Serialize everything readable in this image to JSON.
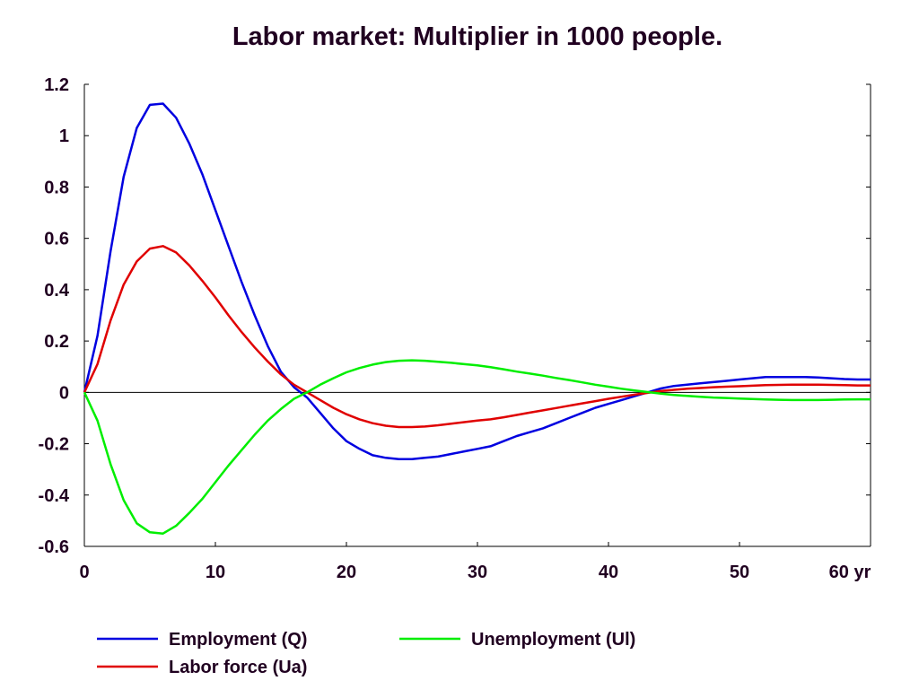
{
  "chart_data": {
    "type": "line",
    "title": "Labor market: Multiplier in 1000 people.",
    "xlabel": "",
    "ylabel": "",
    "x_unit_suffix": "yr",
    "xlim": [
      0,
      60
    ],
    "ylim": [
      -0.6,
      1.2
    ],
    "x_ticks": [
      0,
      10,
      20,
      30,
      40,
      50,
      60
    ],
    "x_tick_labels": [
      "0",
      "10",
      "20",
      "30",
      "40",
      "50",
      "60 yr"
    ],
    "y_ticks": [
      -0.6,
      -0.4,
      -0.2,
      0,
      0.2,
      0.4,
      0.6,
      0.8,
      1,
      1.2
    ],
    "y_tick_labels": [
      "-0.6",
      "-0.4",
      "-0.2",
      "0",
      "0.2",
      "0.4",
      "0.6",
      "0.8",
      "1",
      "1.2"
    ],
    "grid": false,
    "zero_line": true,
    "legend_position": "bottom",
    "x": [
      0,
      1,
      2,
      3,
      4,
      5,
      6,
      7,
      8,
      9,
      10,
      11,
      12,
      13,
      14,
      15,
      16,
      17,
      18,
      19,
      20,
      21,
      22,
      23,
      24,
      25,
      26,
      27,
      28,
      29,
      30,
      31,
      32,
      33,
      34,
      35,
      36,
      37,
      38,
      39,
      40,
      41,
      42,
      43,
      44,
      45,
      46,
      47,
      48,
      49,
      50,
      51,
      52,
      53,
      54,
      55,
      56,
      57,
      58,
      59,
      60
    ],
    "series": [
      {
        "name": "Employment (Q)",
        "color": "#0000e0",
        "values": [
          0,
          0.22,
          0.55,
          0.84,
          1.03,
          1.12,
          1.125,
          1.07,
          0.97,
          0.85,
          0.71,
          0.57,
          0.43,
          0.3,
          0.18,
          0.08,
          0.02,
          -0.02,
          -0.08,
          -0.14,
          -0.19,
          -0.22,
          -0.245,
          -0.255,
          -0.26,
          -0.26,
          -0.255,
          -0.25,
          -0.24,
          -0.23,
          -0.22,
          -0.21,
          -0.19,
          -0.17,
          -0.155,
          -0.14,
          -0.12,
          -0.1,
          -0.08,
          -0.06,
          -0.045,
          -0.03,
          -0.015,
          0,
          0.015,
          0.025,
          0.03,
          0.035,
          0.04,
          0.045,
          0.05,
          0.055,
          0.06,
          0.06,
          0.06,
          0.06,
          0.058,
          0.055,
          0.052,
          0.05,
          0.05
        ]
      },
      {
        "name": "Labor force (Ua)",
        "color": "#e00000",
        "values": [
          0,
          0.11,
          0.28,
          0.42,
          0.51,
          0.56,
          0.57,
          0.545,
          0.495,
          0.435,
          0.37,
          0.3,
          0.235,
          0.175,
          0.12,
          0.07,
          0.03,
          0,
          -0.03,
          -0.06,
          -0.085,
          -0.105,
          -0.12,
          -0.13,
          -0.135,
          -0.135,
          -0.133,
          -0.128,
          -0.122,
          -0.116,
          -0.11,
          -0.105,
          -0.097,
          -0.088,
          -0.079,
          -0.07,
          -0.061,
          -0.052,
          -0.043,
          -0.034,
          -0.025,
          -0.017,
          -0.009,
          -0.002,
          0.005,
          0.01,
          0.014,
          0.017,
          0.02,
          0.022,
          0.024,
          0.026,
          0.028,
          0.029,
          0.03,
          0.03,
          0.03,
          0.029,
          0.028,
          0.027,
          0.027
        ]
      },
      {
        "name": "Unemployment (Ul)",
        "color": "#00ee00",
        "values": [
          0,
          -0.11,
          -0.28,
          -0.42,
          -0.51,
          -0.545,
          -0.55,
          -0.52,
          -0.47,
          -0.415,
          -0.35,
          -0.285,
          -0.225,
          -0.165,
          -0.11,
          -0.065,
          -0.025,
          0,
          0.03,
          0.055,
          0.078,
          0.095,
          0.108,
          0.118,
          0.123,
          0.125,
          0.123,
          0.119,
          0.115,
          0.11,
          0.105,
          0.098,
          0.09,
          0.081,
          0.073,
          0.065,
          0.056,
          0.048,
          0.039,
          0.03,
          0.022,
          0.014,
          0.007,
          0.001,
          -0.005,
          -0.01,
          -0.014,
          -0.017,
          -0.02,
          -0.022,
          -0.024,
          -0.026,
          -0.028,
          -0.029,
          -0.03,
          -0.03,
          -0.03,
          -0.029,
          -0.028,
          -0.027,
          -0.027
        ]
      }
    ]
  }
}
